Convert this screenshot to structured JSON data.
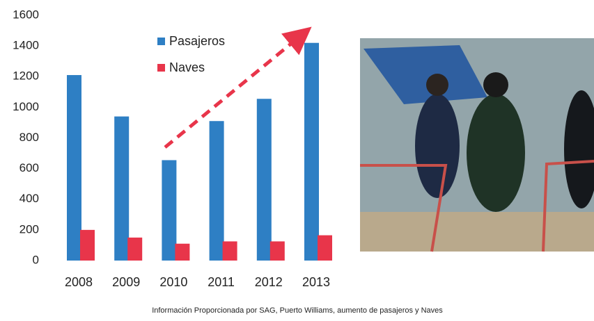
{
  "chart_data": {
    "type": "bar",
    "categories": [
      "2008",
      "2009",
      "2010",
      "2011",
      "2012",
      "2013"
    ],
    "series": [
      {
        "name": "Pasajeros",
        "color": "#2e7fc4",
        "values": [
          1210,
          940,
          655,
          910,
          1055,
          1420
        ]
      },
      {
        "name": "Naves",
        "color": "#e8354a",
        "values": [
          200,
          150,
          110,
          125,
          125,
          165
        ]
      }
    ],
    "ylim": [
      0,
      1600
    ],
    "yticks": [
      0,
      200,
      400,
      600,
      800,
      1000,
      1200,
      1400,
      1600
    ],
    "grid": false,
    "legend": "top",
    "caption": "Información Proporcionada por SAG, Puerto Williams, aumento de pasajeros y Naves"
  }
}
